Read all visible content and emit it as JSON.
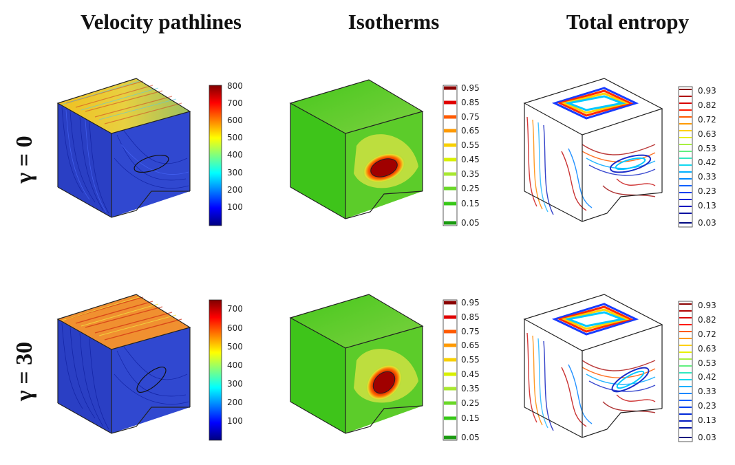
{
  "columns": [
    {
      "title": "Velocity pathlines"
    },
    {
      "title": "Isotherms"
    },
    {
      "title": "Total entropy"
    }
  ],
  "rows": [
    {
      "label": "γ = 0"
    },
    {
      "label": "γ = 30"
    }
  ],
  "colorbars": {
    "velocity_row1": {
      "ticks": [
        "800",
        "700",
        "600",
        "500",
        "400",
        "300",
        "200",
        "100"
      ]
    },
    "velocity_row2": {
      "ticks": [
        "700",
        "600",
        "500",
        "400",
        "300",
        "200",
        "100"
      ]
    },
    "isotherms": {
      "ticks": [
        "0.95",
        "0.85",
        "0.75",
        "0.65",
        "0.55",
        "0.45",
        "0.35",
        "0.25",
        "0.15",
        "0.05"
      ]
    },
    "entropy": {
      "ticks": [
        "0.93",
        "0.82",
        "0.72",
        "0.63",
        "0.53",
        "0.42",
        "0.33",
        "0.23",
        "0.13",
        "0.03"
      ]
    }
  },
  "colors": {
    "jet_dark_red": "#7f0000",
    "jet_red": "#ff0000",
    "jet_yellow": "#ffff00",
    "jet_cyan": "#00ffff",
    "jet_blue": "#0000ff",
    "jet_dark_blue": "#00007f",
    "iso_green": "#3ec81e"
  }
}
